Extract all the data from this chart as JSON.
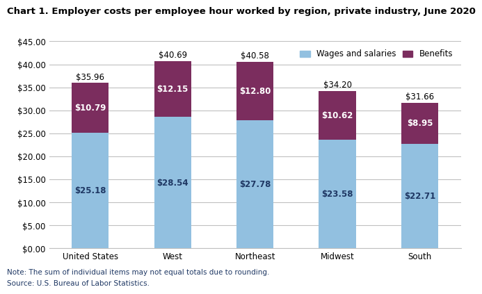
{
  "title": "Chart 1. Employer costs per employee hour worked by region, private industry, June 2020",
  "categories": [
    "United States",
    "West",
    "Northeast",
    "Midwest",
    "South"
  ],
  "wages": [
    25.18,
    28.54,
    27.78,
    23.58,
    22.71
  ],
  "benefits": [
    10.79,
    12.15,
    12.8,
    10.62,
    8.95
  ],
  "totals": [
    35.96,
    40.69,
    40.58,
    34.2,
    31.66
  ],
  "wages_color": "#92C0E0",
  "benefits_color": "#7B2D5E",
  "wages_label": "Wages and salaries",
  "benefits_label": "Benefits",
  "wages_text_color": "#1F3864",
  "benefits_text_color": "#FFFFFF",
  "total_text_color": "#000000",
  "ylim": [
    0,
    45
  ],
  "yticks": [
    0,
    5,
    10,
    15,
    20,
    25,
    30,
    35,
    40,
    45
  ],
  "note": "Note: The sum of individual items may not equal totals due to rounding.",
  "source": "Source: U.S. Bureau of Labor Statistics.",
  "background_color": "#FFFFFF",
  "grid_color": "#C0C0C0",
  "title_fontsize": 9.5,
  "label_fontsize": 8.5,
  "note_fontsize": 7.5,
  "bar_width": 0.45
}
